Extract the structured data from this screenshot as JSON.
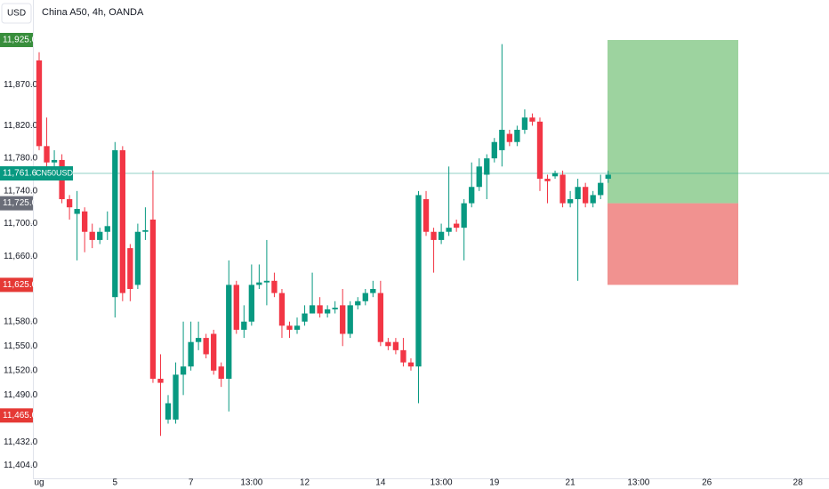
{
  "chart_data": {
    "type": "candlestick",
    "currency": "USD",
    "title": "China A50, 4h, OANDA",
    "up_color": "#089981",
    "down_color": "#f23645",
    "ylim": [
      11388,
      11974
    ],
    "yticks": [
      {
        "value": 11404,
        "label": "11,404.0"
      },
      {
        "value": 11432,
        "label": "11,432.0"
      },
      {
        "value": 11490,
        "label": "11,490.0"
      },
      {
        "value": 11520,
        "label": "11,520.0"
      },
      {
        "value": 11550,
        "label": "11,550.0"
      },
      {
        "value": 11580,
        "label": "11,580.0"
      },
      {
        "value": 11660,
        "label": "11,660.0"
      },
      {
        "value": 11700,
        "label": "11,700.0"
      },
      {
        "value": 11740,
        "label": "11,740.0"
      },
      {
        "value": 11780,
        "label": "11,780.0"
      },
      {
        "value": 11820,
        "label": "11,820.0"
      },
      {
        "value": 11870,
        "label": "11,870.0"
      }
    ],
    "price_markers": [
      {
        "value": 11925,
        "label": "11,925.0",
        "color": "#388e3c"
      },
      {
        "value": 11725,
        "label": "11,725.0",
        "color": "#6a6d78"
      },
      {
        "value": 11625,
        "label": "11,625.0",
        "color": "#e53935"
      },
      {
        "value": 11465,
        "label": "11,465.0",
        "color": "#e53935"
      }
    ],
    "last_price": {
      "value": 11761.6,
      "label": "11,761.6",
      "symbol": "CN50USD",
      "color": "#089981"
    },
    "position": {
      "target": 11925,
      "entry": 11725,
      "stop": 11625,
      "profit_color": "#4caf50",
      "loss_color": "#e53935"
    },
    "categories": [
      "ug",
      null,
      null,
      null,
      null,
      null,
      null,
      null,
      null,
      null,
      "5",
      null,
      null,
      null,
      null,
      null,
      null,
      null,
      null,
      null,
      "7",
      null,
      null,
      null,
      null,
      null,
      null,
      null,
      "13:00",
      null,
      null,
      null,
      null,
      null,
      null,
      "12",
      null,
      null,
      null,
      null,
      null,
      null,
      null,
      null,
      null,
      "14",
      null,
      null,
      null,
      null,
      null,
      null,
      null,
      "13:00",
      null,
      null,
      null,
      null,
      null,
      null,
      "19",
      null,
      null,
      null,
      null,
      null,
      null,
      null,
      null,
      null,
      "21",
      null,
      null,
      null,
      null,
      null,
      null,
      null,
      null,
      "13:00",
      null,
      null,
      null,
      null,
      null,
      null,
      null,
      null,
      "26",
      null,
      null,
      null,
      null,
      null,
      null,
      null,
      null,
      null,
      null,
      null,
      "28"
    ],
    "open": [
      11900,
      11795,
      11775,
      11778,
      11730,
      11712,
      11715,
      11690,
      11680,
      11690,
      11610,
      11790,
      11670,
      11625,
      11690,
      11705,
      11510,
      11460,
      11460,
      11515,
      11525,
      11555,
      11560,
      11565,
      11525,
      11510,
      11625,
      11570,
      11580,
      11625,
      11628,
      11630,
      11615,
      11575,
      11570,
      11580,
      11590,
      11600,
      11590,
      11595,
      11600,
      11565,
      11600,
      11605,
      11615,
      11615,
      11555,
      11555,
      11545,
      11530,
      11525,
      11730,
      11690,
      11680,
      11690,
      11700,
      11695,
      11725,
      11745,
      11760,
      11780,
      11790,
      11810,
      11800,
      11815,
      11830,
      11825,
      11755,
      11758,
      11760,
      11725,
      11730,
      11745,
      11725,
      11735,
      11755,
      null,
      null,
      null,
      null,
      null,
      null,
      null,
      null,
      null,
      null,
      null,
      null,
      null,
      null,
      null,
      null,
      null,
      null,
      null,
      null,
      null,
      null,
      null,
      null,
      null
    ],
    "high": [
      11910,
      11830,
      11790,
      11785,
      11735,
      11740,
      11720,
      11700,
      11695,
      11715,
      11800,
      11795,
      11675,
      11700,
      11720,
      11765,
      11540,
      11490,
      11530,
      11580,
      11580,
      11580,
      11565,
      11570,
      11530,
      11655,
      11630,
      11600,
      11650,
      11650,
      11680,
      11640,
      11620,
      11580,
      11585,
      11600,
      11640,
      11610,
      11600,
      11605,
      11620,
      11605,
      11610,
      11620,
      11630,
      11630,
      11560,
      11560,
      11560,
      11535,
      11740,
      11740,
      11695,
      11700,
      11770,
      11705,
      11730,
      11775,
      11780,
      11785,
      11805,
      11920,
      11815,
      11820,
      11840,
      11835,
      11830,
      11760,
      11765,
      11765,
      11740,
      11755,
      11750,
      11740,
      11760,
      11765,
      null,
      null,
      null,
      null,
      null,
      null,
      null,
      null,
      null,
      null,
      null,
      null,
      null,
      null,
      null,
      null,
      null,
      null,
      null,
      null,
      null,
      null,
      null,
      null,
      null
    ],
    "low": [
      11790,
      11770,
      11760,
      11725,
      11705,
      11655,
      11665,
      11670,
      11675,
      11680,
      11585,
      11605,
      11605,
      11620,
      11680,
      11505,
      11440,
      11455,
      11455,
      11490,
      11520,
      11545,
      11535,
      11515,
      11500,
      11470,
      11565,
      11560,
      11575,
      11620,
      11600,
      11610,
      11560,
      11560,
      11565,
      11575,
      11590,
      11585,
      11585,
      11590,
      11550,
      11560,
      11595,
      11600,
      11610,
      11550,
      11545,
      11540,
      11525,
      11520,
      11480,
      11685,
      11640,
      11675,
      11685,
      11690,
      11655,
      11720,
      11740,
      11730,
      11775,
      11770,
      11795,
      11795,
      11810,
      11820,
      11740,
      11725,
      11755,
      11720,
      11720,
      11630,
      11720,
      11720,
      11730,
      11750,
      null,
      null,
      null,
      null,
      null,
      null,
      null,
      null,
      null,
      null,
      null,
      null,
      null,
      null,
      null,
      null,
      null,
      null,
      null,
      null,
      null,
      null,
      null,
      null,
      null
    ],
    "close": [
      11795,
      11775,
      11778,
      11730,
      11720,
      11718,
      11690,
      11680,
      11690,
      11697,
      11790,
      11615,
      11620,
      11690,
      11692,
      11510,
      11505,
      11480,
      11515,
      11525,
      11555,
      11560,
      11540,
      11520,
      11510,
      11625,
      11570,
      11580,
      11625,
      11628,
      11630,
      11615,
      11575,
      11570,
      11575,
      11590,
      11600,
      11590,
      11595,
      11597,
      11565,
      11600,
      11605,
      11615,
      11620,
      11555,
      11550,
      11545,
      11530,
      11525,
      11735,
      11690,
      11680,
      11690,
      11695,
      11695,
      11725,
      11745,
      11770,
      11780,
      11800,
      11815,
      11800,
      11815,
      11830,
      11825,
      11755,
      11752,
      11762,
      11725,
      11730,
      11745,
      11725,
      11735,
      11750,
      11760,
      null,
      null,
      null,
      null,
      null,
      null,
      null,
      null,
      null,
      null,
      null,
      null,
      null,
      null,
      null,
      null,
      null,
      null,
      null,
      null,
      null,
      null,
      null,
      null,
      null
    ]
  }
}
